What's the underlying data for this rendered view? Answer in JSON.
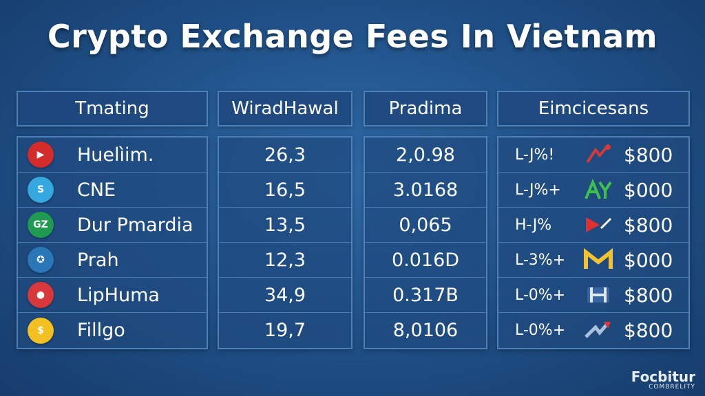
{
  "title": "Crypto Exchange Fees In Vietnam",
  "watermark": {
    "line1": "Focbitur",
    "line2": "COMBRELITY"
  },
  "chart_data": {
    "type": "table",
    "columns": [
      "Tmating",
      "WiradHawal",
      "Pradima",
      "Eimcicesans"
    ],
    "rows": [
      {
        "name": "Huelìim.",
        "logo_color": "#d42b2b",
        "logo_icon": "play-icon",
        "withdrawal": "26,3",
        "pradima": "2,0.98",
        "fee": "L-J%!",
        "mark_icon": "red-arrow-icon",
        "mark_color": "#d43a3a",
        "amount": "$800"
      },
      {
        "name": "CNE",
        "logo_color": "#35a8e0",
        "logo_icon": "sonic-icon",
        "withdrawal": "16,5",
        "pradima": "3.0168",
        "fee": "L-J%+",
        "mark_icon": "green-ay-icon",
        "mark_color": "#3cc24a",
        "amount": "$000"
      },
      {
        "name": "Dur Pmardia",
        "logo_color": "#1f9a52",
        "logo_icon": "gz-icon",
        "withdrawal": "13,5",
        "pradima": "0,065",
        "fee": "H-J%",
        "mark_icon": "red-triangle-icon",
        "mark_color": "#e03030",
        "amount": "$800"
      },
      {
        "name": "Prah",
        "logo_color": "#2a77b8",
        "logo_icon": "lion-icon",
        "withdrawal": "12,3",
        "pradima": "0.016D",
        "fee": "L-3%+",
        "mark_icon": "yellow-m-icon",
        "mark_color": "#f2c230",
        "amount": "$000"
      },
      {
        "name": "LipHuma",
        "logo_color": "#d8383b",
        "logo_icon": "circle-icon",
        "withdrawal": "34,9",
        "pradima": "0.317B",
        "fee": "L-0%+",
        "mark_icon": "blue-h-icon",
        "mark_color": "#4a78b8",
        "amount": "$800"
      },
      {
        "name": "Fillgo",
        "logo_color": "#f2c021",
        "logo_icon": "dollar-icon",
        "withdrawal": "19,7",
        "pradima": "8,0106",
        "fee": "L-0%+",
        "mark_icon": "red-bolt-icon",
        "mark_color": "#d83838",
        "amount": "$800"
      }
    ]
  }
}
